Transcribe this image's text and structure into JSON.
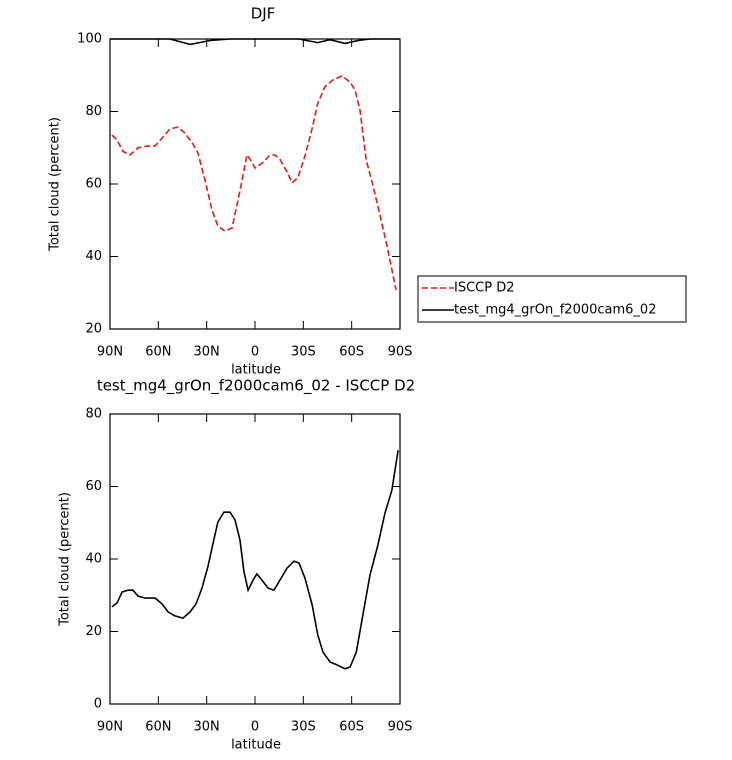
{
  "chart_data": [
    {
      "type": "line",
      "title": "DJF",
      "xlabel": "latitude",
      "ylabel": "Total cloud (percent)",
      "xlim": [
        90,
        -90
      ],
      "xticks": [
        {
          "value": 90,
          "label": "90N"
        },
        {
          "value": 60,
          "label": "60N"
        },
        {
          "value": 30,
          "label": "30N"
        },
        0,
        {
          "value": -30,
          "label": "30S"
        },
        {
          "value": -60,
          "label": "60S"
        },
        {
          "value": -90,
          "label": "90S"
        }
      ],
      "ylim": [
        20,
        100
      ],
      "yticks": [
        20,
        40,
        60,
        80,
        100
      ],
      "legend": "right",
      "series": [
        {
          "name": "ISCCP D2",
          "color": "#e41a1c",
          "line_style": "dashed",
          "x": [
            88.8,
            85.6,
            82,
            77.6,
            72.6,
            66.4,
            62,
            57,
            52.8,
            47.8,
            43.4,
            38.5,
            35.4,
            31,
            26.7,
            23,
            18.6,
            14.3,
            10.5,
            7.4,
            5,
            3,
            0,
            -5,
            -9.3,
            -12.4,
            -15.5,
            -19.9,
            -23,
            -26.7,
            -31,
            -35.5,
            -39,
            -43.4,
            -48.3,
            -54,
            -59,
            -62,
            -65.2,
            -69,
            -73.2,
            -77.6,
            -82.5,
            -87.5
          ],
          "values": [
            73.5,
            72.1,
            69,
            68,
            70,
            70.5,
            70.5,
            73,
            75.2,
            75.7,
            74,
            71,
            68.5,
            61,
            52.8,
            48.4,
            47,
            47.9,
            55.6,
            62.5,
            68,
            66.8,
            64.4,
            66,
            68,
            68,
            66.8,
            63.3,
            60.3,
            61.8,
            67.7,
            75.4,
            82.3,
            86.8,
            88.7,
            89.8,
            88.1,
            86,
            80.4,
            66.6,
            59.7,
            51.4,
            41.8,
            30.8
          ]
        },
        {
          "name": "test_mg4_grOn_f2000cam6_02",
          "color": "#000000",
          "line_style": "solid",
          "x": [
            90,
            52.8,
            40.3,
            27.9,
            15.5,
            -27.3,
            -39,
            -46.5,
            -55.9,
            -64,
            -71.4,
            -90
          ],
          "values": [
            100,
            100,
            98.5,
            99.6,
            100,
            100,
            99,
            99.8,
            98.8,
            99.6,
            100,
            100
          ]
        }
      ]
    },
    {
      "type": "line",
      "title": "test_mg4_grOn_f2000cam6_02 - ISCCP D2",
      "xlabel": "latitude",
      "ylabel": "Total cloud (percent)",
      "xlim": [
        90,
        -90
      ],
      "xticks": [
        {
          "value": 90,
          "label": "90N"
        },
        {
          "value": 60,
          "label": "60N"
        },
        {
          "value": 30,
          "label": "30N"
        },
        0,
        {
          "value": -30,
          "label": "30S"
        },
        {
          "value": -60,
          "label": "60S"
        },
        {
          "value": -90,
          "label": "90S"
        }
      ],
      "ylim": [
        0,
        80
      ],
      "yticks": [
        0,
        20,
        40,
        60,
        80
      ],
      "series": [
        {
          "color": "#000000",
          "line_style": "solid",
          "x": [
            88.8,
            85.6,
            82.5,
            78.8,
            75.7,
            72.6,
            68.3,
            62,
            57.6,
            54,
            49.7,
            44.7,
            40.3,
            36.6,
            32.9,
            29.2,
            26,
            23,
            19.3,
            15.5,
            12.4,
            9.3,
            6.8,
            4.3,
            1.2,
            -1.2,
            -4.3,
            -8,
            -11.8,
            -15.5,
            -19.9,
            -24.2,
            -27.3,
            -31,
            -35.5,
            -39,
            -42.2,
            -46.6,
            -50.9,
            -55.9,
            -59,
            -62.9,
            -66.4,
            -71.4,
            -76.3,
            -80.7,
            -85,
            -88.8
          ],
          "values": [
            26.8,
            27.9,
            30.9,
            31.4,
            31.4,
            29.8,
            29.2,
            29.2,
            27.6,
            25.4,
            24.3,
            23.7,
            25.4,
            27.6,
            32,
            38,
            44.4,
            50.2,
            52.9,
            52.9,
            50.8,
            45.2,
            36.4,
            31.4,
            34.2,
            35.9,
            34.2,
            32,
            31.4,
            34.2,
            37.5,
            39.4,
            38.9,
            34.8,
            27.3,
            19,
            14.3,
            11.6,
            10.8,
            9.7,
            10.2,
            14.3,
            23.2,
            35.6,
            43.9,
            52.7,
            59,
            70
          ]
        }
      ]
    }
  ]
}
